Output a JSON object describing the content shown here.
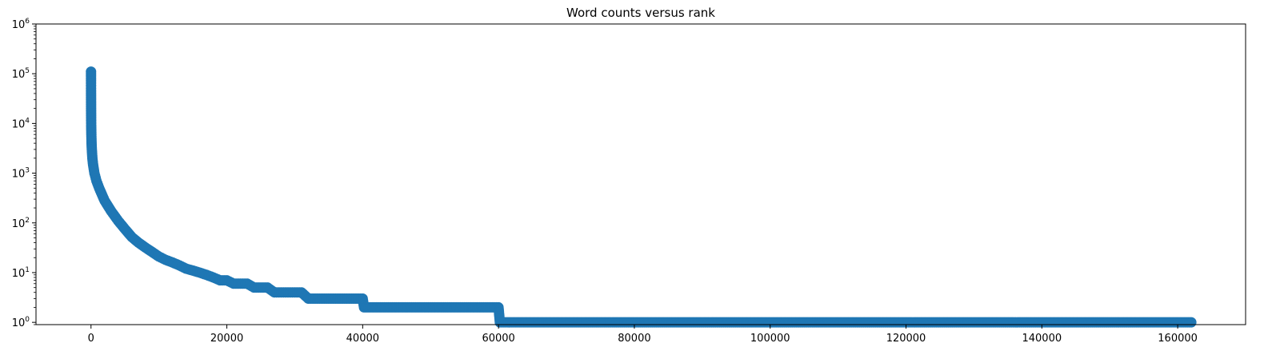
{
  "chart_data": {
    "type": "scatter",
    "title": "Word counts versus rank",
    "xlabel": "",
    "ylabel": "",
    "yscale": "log",
    "xlim": [
      -8100,
      170000
    ],
    "ylim": [
      0.9,
      1000000
    ],
    "x_ticks": [
      0,
      20000,
      40000,
      60000,
      80000,
      100000,
      120000,
      140000,
      160000
    ],
    "x_tick_labels": [
      "0",
      "20000",
      "40000",
      "60000",
      "80000",
      "100000",
      "120000",
      "140000",
      "160000"
    ],
    "y_ticks": [
      1,
      10,
      100,
      1000,
      10000,
      100000,
      1000000
    ],
    "y_tick_labels": [
      {
        "base": "10",
        "exp": "0"
      },
      {
        "base": "10",
        "exp": "1"
      },
      {
        "base": "10",
        "exp": "2"
      },
      {
        "base": "10",
        "exp": "3"
      },
      {
        "base": "10",
        "exp": "4"
      },
      {
        "base": "10",
        "exp": "5"
      },
      {
        "base": "10",
        "exp": "6"
      }
    ],
    "grid": false,
    "marker_color": "#1f77b4",
    "series": [
      {
        "x": [
          1,
          2,
          3,
          5,
          8,
          12,
          20,
          30,
          50,
          80,
          120,
          200,
          300,
          500,
          800,
          1200,
          2000,
          3000,
          4000,
          5000,
          6000,
          7000,
          8000,
          9000,
          10000,
          11000,
          12000,
          13000,
          14000,
          15000,
          16000,
          17000,
          18000,
          19000,
          20000,
          21000,
          22000,
          23000,
          24000,
          25000,
          26000,
          27000,
          28000,
          29000,
          30000,
          31000,
          32000,
          34000,
          36000,
          38000,
          40000,
          40200,
          45000,
          50000,
          55000,
          60000,
          60200,
          80000,
          100000,
          120000,
          140000,
          162000
        ],
        "y": [
          110000,
          90000,
          65000,
          45000,
          30000,
          20000,
          13000,
          9000,
          6000,
          4000,
          3000,
          2000,
          1500,
          1000,
          700,
          500,
          280,
          170,
          110,
          75,
          52,
          40,
          32,
          26,
          21,
          18,
          16,
          14,
          12,
          11,
          10,
          9,
          8,
          7,
          7,
          6,
          6,
          6,
          5,
          5,
          5,
          4,
          4,
          4,
          4,
          4,
          3,
          3,
          3,
          3,
          3,
          2,
          2,
          2,
          2,
          2,
          1,
          1,
          1,
          1,
          1,
          1
        ]
      }
    ]
  }
}
